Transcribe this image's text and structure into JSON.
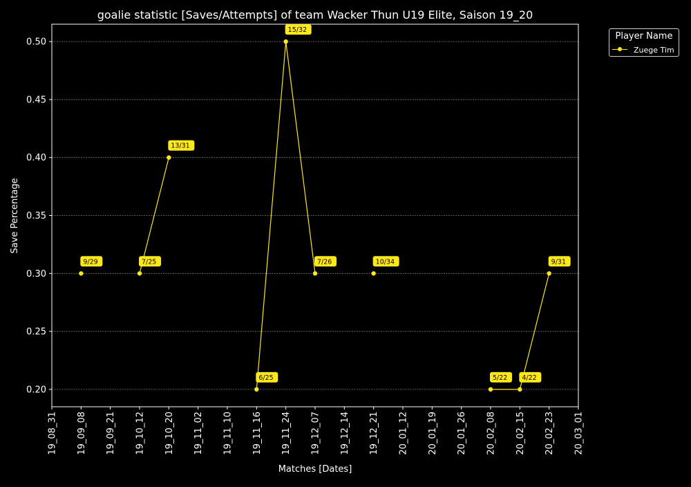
{
  "chart_data": {
    "type": "line",
    "title": "goalie statistic [Saves/Attempts] of team Wacker Thun U19 Elite, Saison 19_20",
    "xlabel": "Matches [Dates]",
    "ylabel": "Save Percentage",
    "x_ticks": [
      "19_08_31",
      "19_09_08",
      "19_09_21",
      "19_10_12",
      "19_10_20",
      "19_11_02",
      "19_11_10",
      "19_11_16",
      "19_11_24",
      "19_12_07",
      "19_12_14",
      "19_12_21",
      "20_01_12",
      "20_01_19",
      "20_01_26",
      "20_02_08",
      "20_02_15",
      "20_02_23",
      "20_03_01"
    ],
    "y_ticks": [
      "0.20",
      "0.25",
      "0.30",
      "0.35",
      "0.40",
      "0.45",
      "0.50"
    ],
    "ylim": [
      0.185,
      0.515
    ],
    "grid": "horizontal dashed",
    "legend": {
      "title": "Player Name",
      "placement": "right, outside top"
    },
    "series": [
      {
        "name": "Zuege Tim",
        "color": "#ffe81a",
        "points": [
          {
            "x": "19_09_08",
            "y": 0.3,
            "label": "9/29"
          },
          {
            "x": "19_10_12",
            "y": 0.3,
            "label": "7/25"
          },
          {
            "x": "19_10_20",
            "y": 0.4,
            "label": "13/31"
          },
          {
            "x": "19_11_16",
            "y": 0.2,
            "label": "6/25"
          },
          {
            "x": "19_11_24",
            "y": 0.5,
            "label": "15/32"
          },
          {
            "x": "19_12_07",
            "y": 0.3,
            "label": "7/26"
          },
          {
            "x": "19_12_21",
            "y": 0.3,
            "label": "10/34"
          },
          {
            "x": "20_02_08",
            "y": 0.2,
            "label": "5/22"
          },
          {
            "x": "20_02_15",
            "y": 0.2,
            "label": "4/22"
          },
          {
            "x": "20_02_23",
            "y": 0.3,
            "label": "9/31"
          }
        ],
        "segments": [
          [
            1,
            2
          ],
          [
            3,
            4,
            5
          ],
          [
            7,
            8,
            9
          ]
        ]
      }
    ]
  }
}
